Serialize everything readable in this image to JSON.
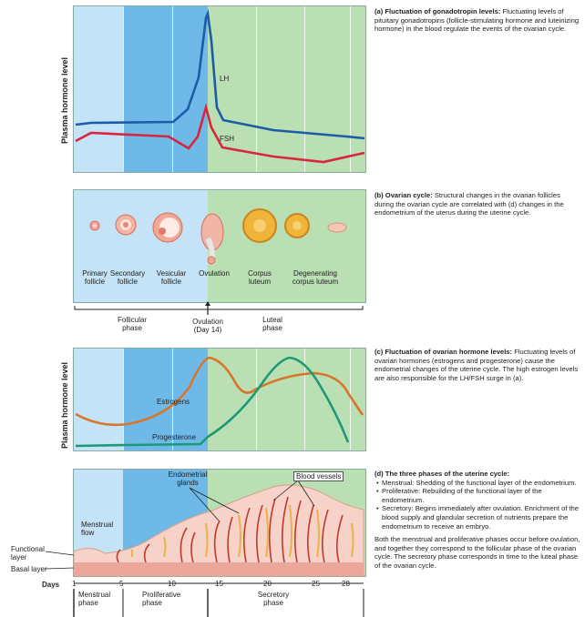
{
  "colors": {
    "menstrual": "#c4e3f6",
    "proliferative": "#6fb9e9",
    "secretory": "#b9dfb3",
    "lh": "#1b5da7",
    "fsh": "#d7263d",
    "estrogen": "#d9752a",
    "progesterone": "#1c9a76",
    "endometrium": "#f6d2c8",
    "vessel": "#c0392b",
    "gland": "#e8b44a"
  },
  "panel_a": {
    "ylabel": "Plasma hormone level",
    "lh_label": "LH",
    "fsh_label": "FSH",
    "title": "(a) Fluctuation of gonadotropin levels:",
    "body": "Fluctuating levels of pituitary gonadotropins (follicle-stimulating hormone and luteinizing hormone) in the blood regulate the events of the ovarian cycle."
  },
  "panel_b": {
    "stages": [
      {
        "line1": "Primary",
        "line2": "follicle"
      },
      {
        "line1": "Secondary",
        "line2": "follicle"
      },
      {
        "line1": "Vesicular",
        "line2": "follicle"
      },
      {
        "line1": "Ovulation",
        "line2": ""
      },
      {
        "line1": "Corpus",
        "line2": "luteum"
      },
      {
        "line1": "Degenerating",
        "line2": "corpus luteum"
      }
    ],
    "phases": {
      "follicular_1": "Follicular",
      "follicular_2": "phase",
      "ovulation_1": "Ovulation",
      "ovulation_2": "(Day 14)",
      "luteal_1": "Luteal",
      "luteal_2": "phase"
    },
    "title": "(b) Ovarian cycle:",
    "body": "Structural changes in the ovarian follicles during the ovarian cycle are correlated with (d) changes in the endometrium of the uterus during the uterine cycle."
  },
  "panel_c": {
    "ylabel": "Plasma hormone level",
    "estrogens_label": "Estrogens",
    "progesterone_label": "Progesterone",
    "title": "(c) Fluctuation of ovarian hormone levels:",
    "body": "Fluctuating levels of ovarian hormones (estrogens and progesterone) cause the endometrial changes of the uterine cycle. The high estrogen levels are also responsible for the LH/FSH surge in (a)."
  },
  "panel_d": {
    "glands_1": "Endometrial",
    "glands_2": "glands",
    "vessels_label": "Blood vessels",
    "flow_1": "Menstrual",
    "flow_2": "flow",
    "functional_1": "Functional",
    "functional_2": "layer",
    "basal_label": "Basal layer",
    "days_label": "Days",
    "day_ticks": [
      "1",
      "5",
      "10",
      "15",
      "20",
      "25",
      "28"
    ],
    "phases": [
      {
        "line1": "Menstrual",
        "line2": "phase"
      },
      {
        "line1": "Proliferative",
        "line2": "phase"
      },
      {
        "line1": "Secretory",
        "line2": "phase"
      }
    ],
    "title": "(d) The three phases of the uterine cycle:",
    "bullets": [
      "Menstrual: Shedding of the functional layer of the endometrium.",
      "Proliferative: Rebuilding of the functional layer of the endometrium.",
      "Secretory: Begins immediately after ovulation. Enrichment of the blood supply and glandular secretion of nutrients prepare the endometrium to receive an embryo."
    ],
    "closing": "Both the menstrual and proliferative phases occur before ovulation, and together they correspond to the follicular phase of the ovarian cycle. The secretory phase corresponds in time to the luteal phase of the ovarian cycle."
  }
}
